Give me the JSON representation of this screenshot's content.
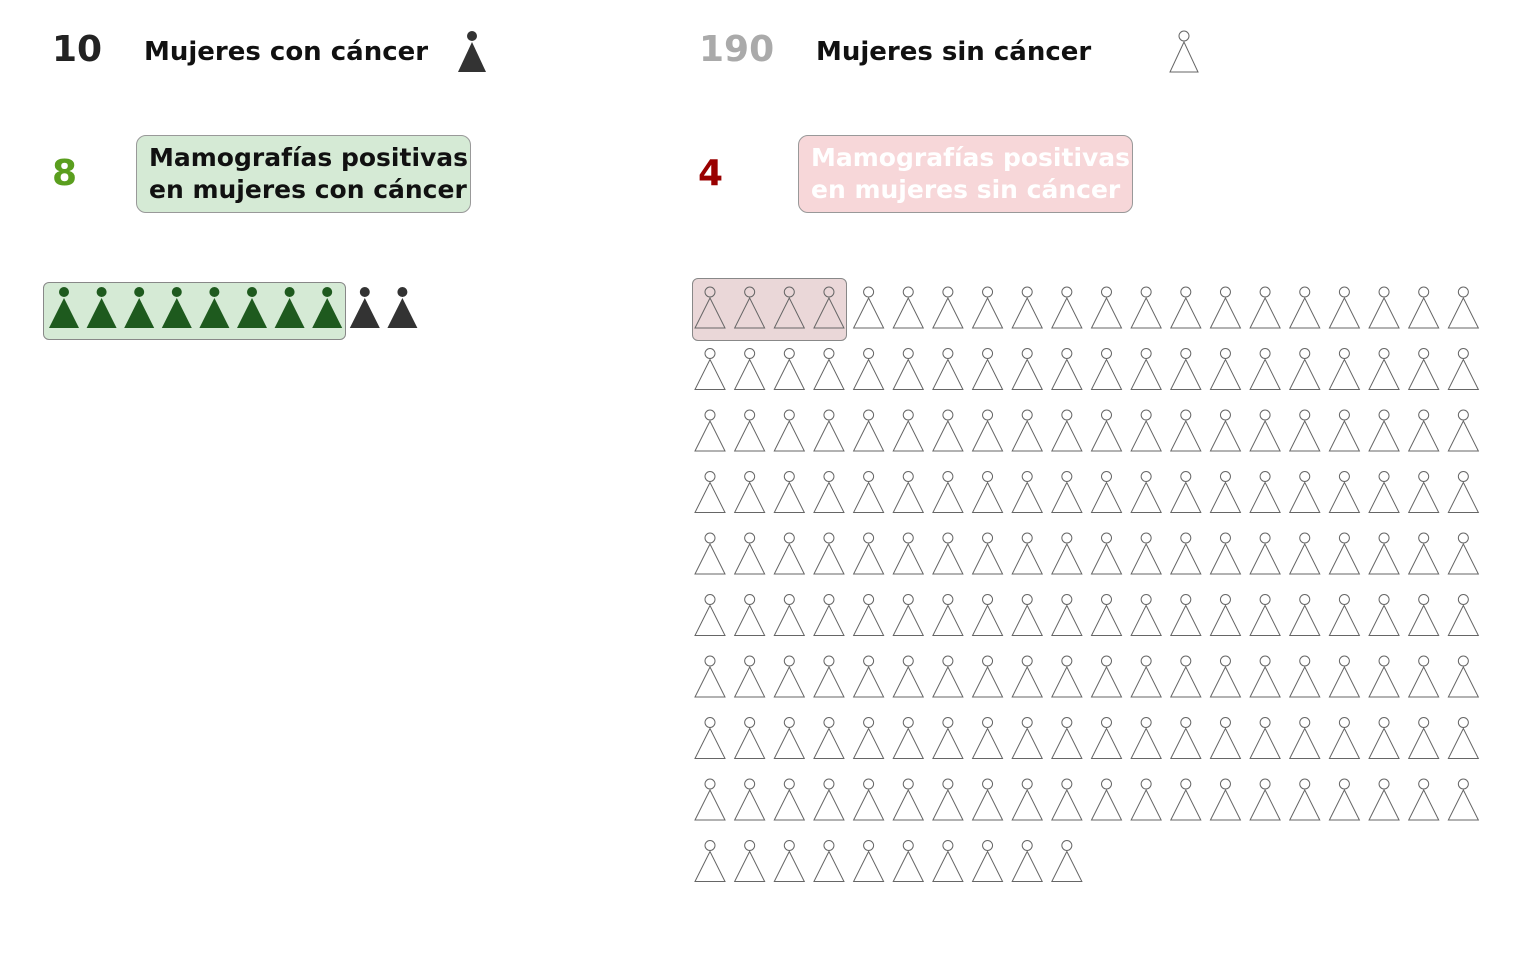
{
  "left": {
    "total_count": "10",
    "total_label": "Mujeres con cáncer",
    "positive_count": "8",
    "positive_label_line1": "Mamografías positivas",
    "positive_label_line2": "en mujeres con cáncer"
  },
  "right": {
    "total_count": "190",
    "total_label": "Mujeres sin cáncer",
    "positive_count": "4",
    "positive_label_line1": "Mamografías positivas",
    "positive_label_line2": "en mujeres sin cáncer"
  },
  "colors": {
    "with_cancer_icon": "#333333",
    "positive_with_cancer_icon": "#1e5a1e",
    "positive_with_cancer_box": "#d5ead5",
    "positive_with_cancer_count": "#5a9e1e",
    "without_cancer_icon_stroke": "#666666",
    "without_cancer_count": "#aaaaaa",
    "positive_without_cancer_box": "#f7d7d9",
    "positive_without_cancer_count": "#990000",
    "positive_without_cancer_label": "#ffffff"
  },
  "chart_data": {
    "type": "icon-array",
    "groups": [
      {
        "name": "Mujeres con cáncer",
        "count": 10,
        "positive": 8,
        "icon": "woman-filled-icon"
      },
      {
        "name": "Mujeres sin cáncer",
        "count": 190,
        "positive": 4,
        "icon": "woman-outline-icon"
      }
    ]
  }
}
